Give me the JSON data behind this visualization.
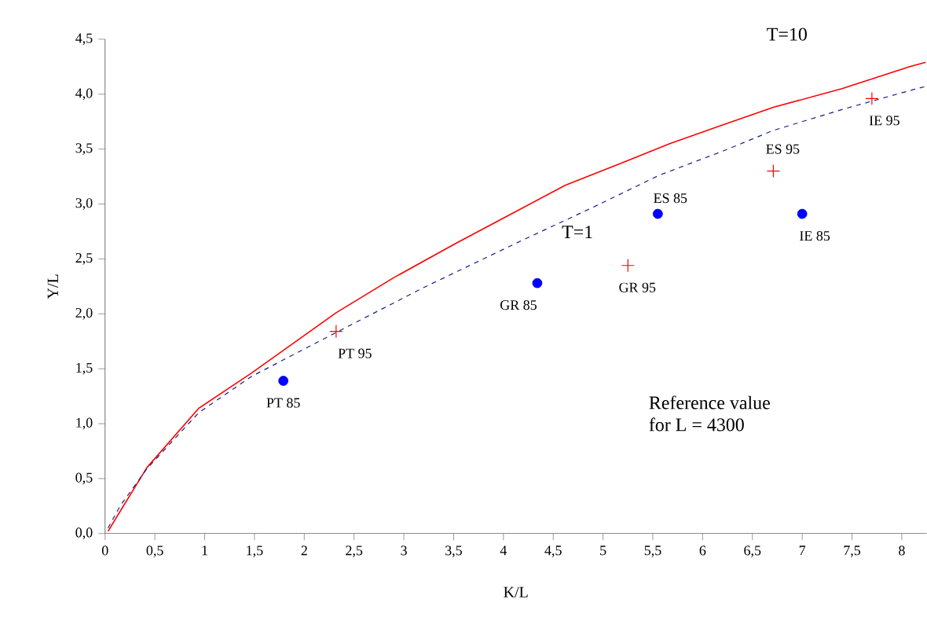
{
  "chart_data": {
    "type": "line",
    "xlabel": "K/L",
    "ylabel": "Y/L",
    "xlim": [
      0,
      8.25
    ],
    "ylim": [
      0,
      4.5
    ],
    "xticks": [
      0,
      {
        "value": 0.5,
        "label": "0,5"
      },
      1,
      {
        "value": 1.5,
        "label": "1,5"
      },
      2,
      {
        "value": 2.5,
        "label": "2,5"
      },
      3,
      {
        "value": 3.5,
        "label": "3,5"
      },
      4,
      {
        "value": 4.5,
        "label": "4,5"
      },
      5,
      {
        "value": 5.5,
        "label": "5,5"
      },
      6,
      {
        "value": 6.5,
        "label": "6,5"
      },
      7,
      {
        "value": 7.5,
        "label": "7,5"
      },
      8
    ],
    "yticks": [
      {
        "value": 0,
        "label": "0,0"
      },
      {
        "value": 0.5,
        "label": "0,5"
      },
      {
        "value": 1,
        "label": "1,0"
      },
      {
        "value": 1.5,
        "label": "1,5"
      },
      {
        "value": 2,
        "label": "2,0"
      },
      {
        "value": 2.5,
        "label": "2,5"
      },
      {
        "value": 3,
        "label": "3,0"
      },
      {
        "value": 3.5,
        "label": "3,5"
      },
      {
        "value": 4,
        "label": "4,0"
      },
      {
        "value": 4.5,
        "label": "4,5"
      }
    ],
    "grid": false,
    "legend": false,
    "series": [
      {
        "name": "T=10",
        "color": "#ff0000",
        "line_style": "solid",
        "marker": "none",
        "x": [
          0.03,
          0.15,
          0.42,
          0.94,
          1.47,
          2.32,
          2.9,
          3.52,
          4.1,
          4.62,
          5.15,
          5.67,
          6.2,
          6.71,
          7.4,
          8.08,
          8.24
        ],
        "values": [
          0.02,
          0.2,
          0.6,
          1.14,
          1.46,
          2.01,
          2.33,
          2.64,
          2.92,
          3.17,
          3.36,
          3.55,
          3.72,
          3.88,
          4.05,
          4.25,
          4.29
        ]
      },
      {
        "name": "T=1",
        "color": "#1a1a8c",
        "line_style": "dashed",
        "marker": "none",
        "x": [
          0.03,
          0.15,
          0.42,
          0.94,
          1.47,
          2.32,
          3.2,
          4.19,
          4.9,
          5.56,
          6.2,
          6.71,
          7.4,
          8.11,
          8.24
        ],
        "values": [
          0.05,
          0.25,
          0.59,
          1.1,
          1.43,
          1.83,
          2.24,
          2.67,
          2.97,
          3.26,
          3.48,
          3.67,
          3.86,
          4.04,
          4.07
        ]
      },
      {
        "type": "scatter",
        "color": "#0000ff",
        "marker": "circle",
        "x": [
          1.79,
          4.34,
          5.55,
          7.0
        ],
        "values": [
          1.39,
          2.28,
          2.91,
          2.91
        ]
      },
      {
        "type": "scatter",
        "color": "#ff0000",
        "marker": "cross",
        "x": [
          2.32,
          5.25,
          6.71,
          7.7
        ],
        "values": [
          1.84,
          2.44,
          3.3,
          3.96
        ]
      }
    ],
    "annotations": [
      {
        "text": "PT 85",
        "x": 1.79,
        "y": 1.39
      },
      {
        "text": "GR 85",
        "x": 4.34,
        "y": 2.28
      },
      {
        "text": "ES 85",
        "x": 5.55,
        "y": 2.91
      },
      {
        "text": "IE 85",
        "x": 7.0,
        "y": 2.91
      },
      {
        "text": "PT 95",
        "x": 2.32,
        "y": 1.84
      },
      {
        "text": "GR 95",
        "x": 5.25,
        "y": 2.44
      },
      {
        "text": "ES 95",
        "x": 6.71,
        "y": 3.3
      },
      {
        "text": "IE 95",
        "x": 7.7,
        "y": 3.96
      },
      "Reference value",
      "for L = 4300"
    ]
  }
}
